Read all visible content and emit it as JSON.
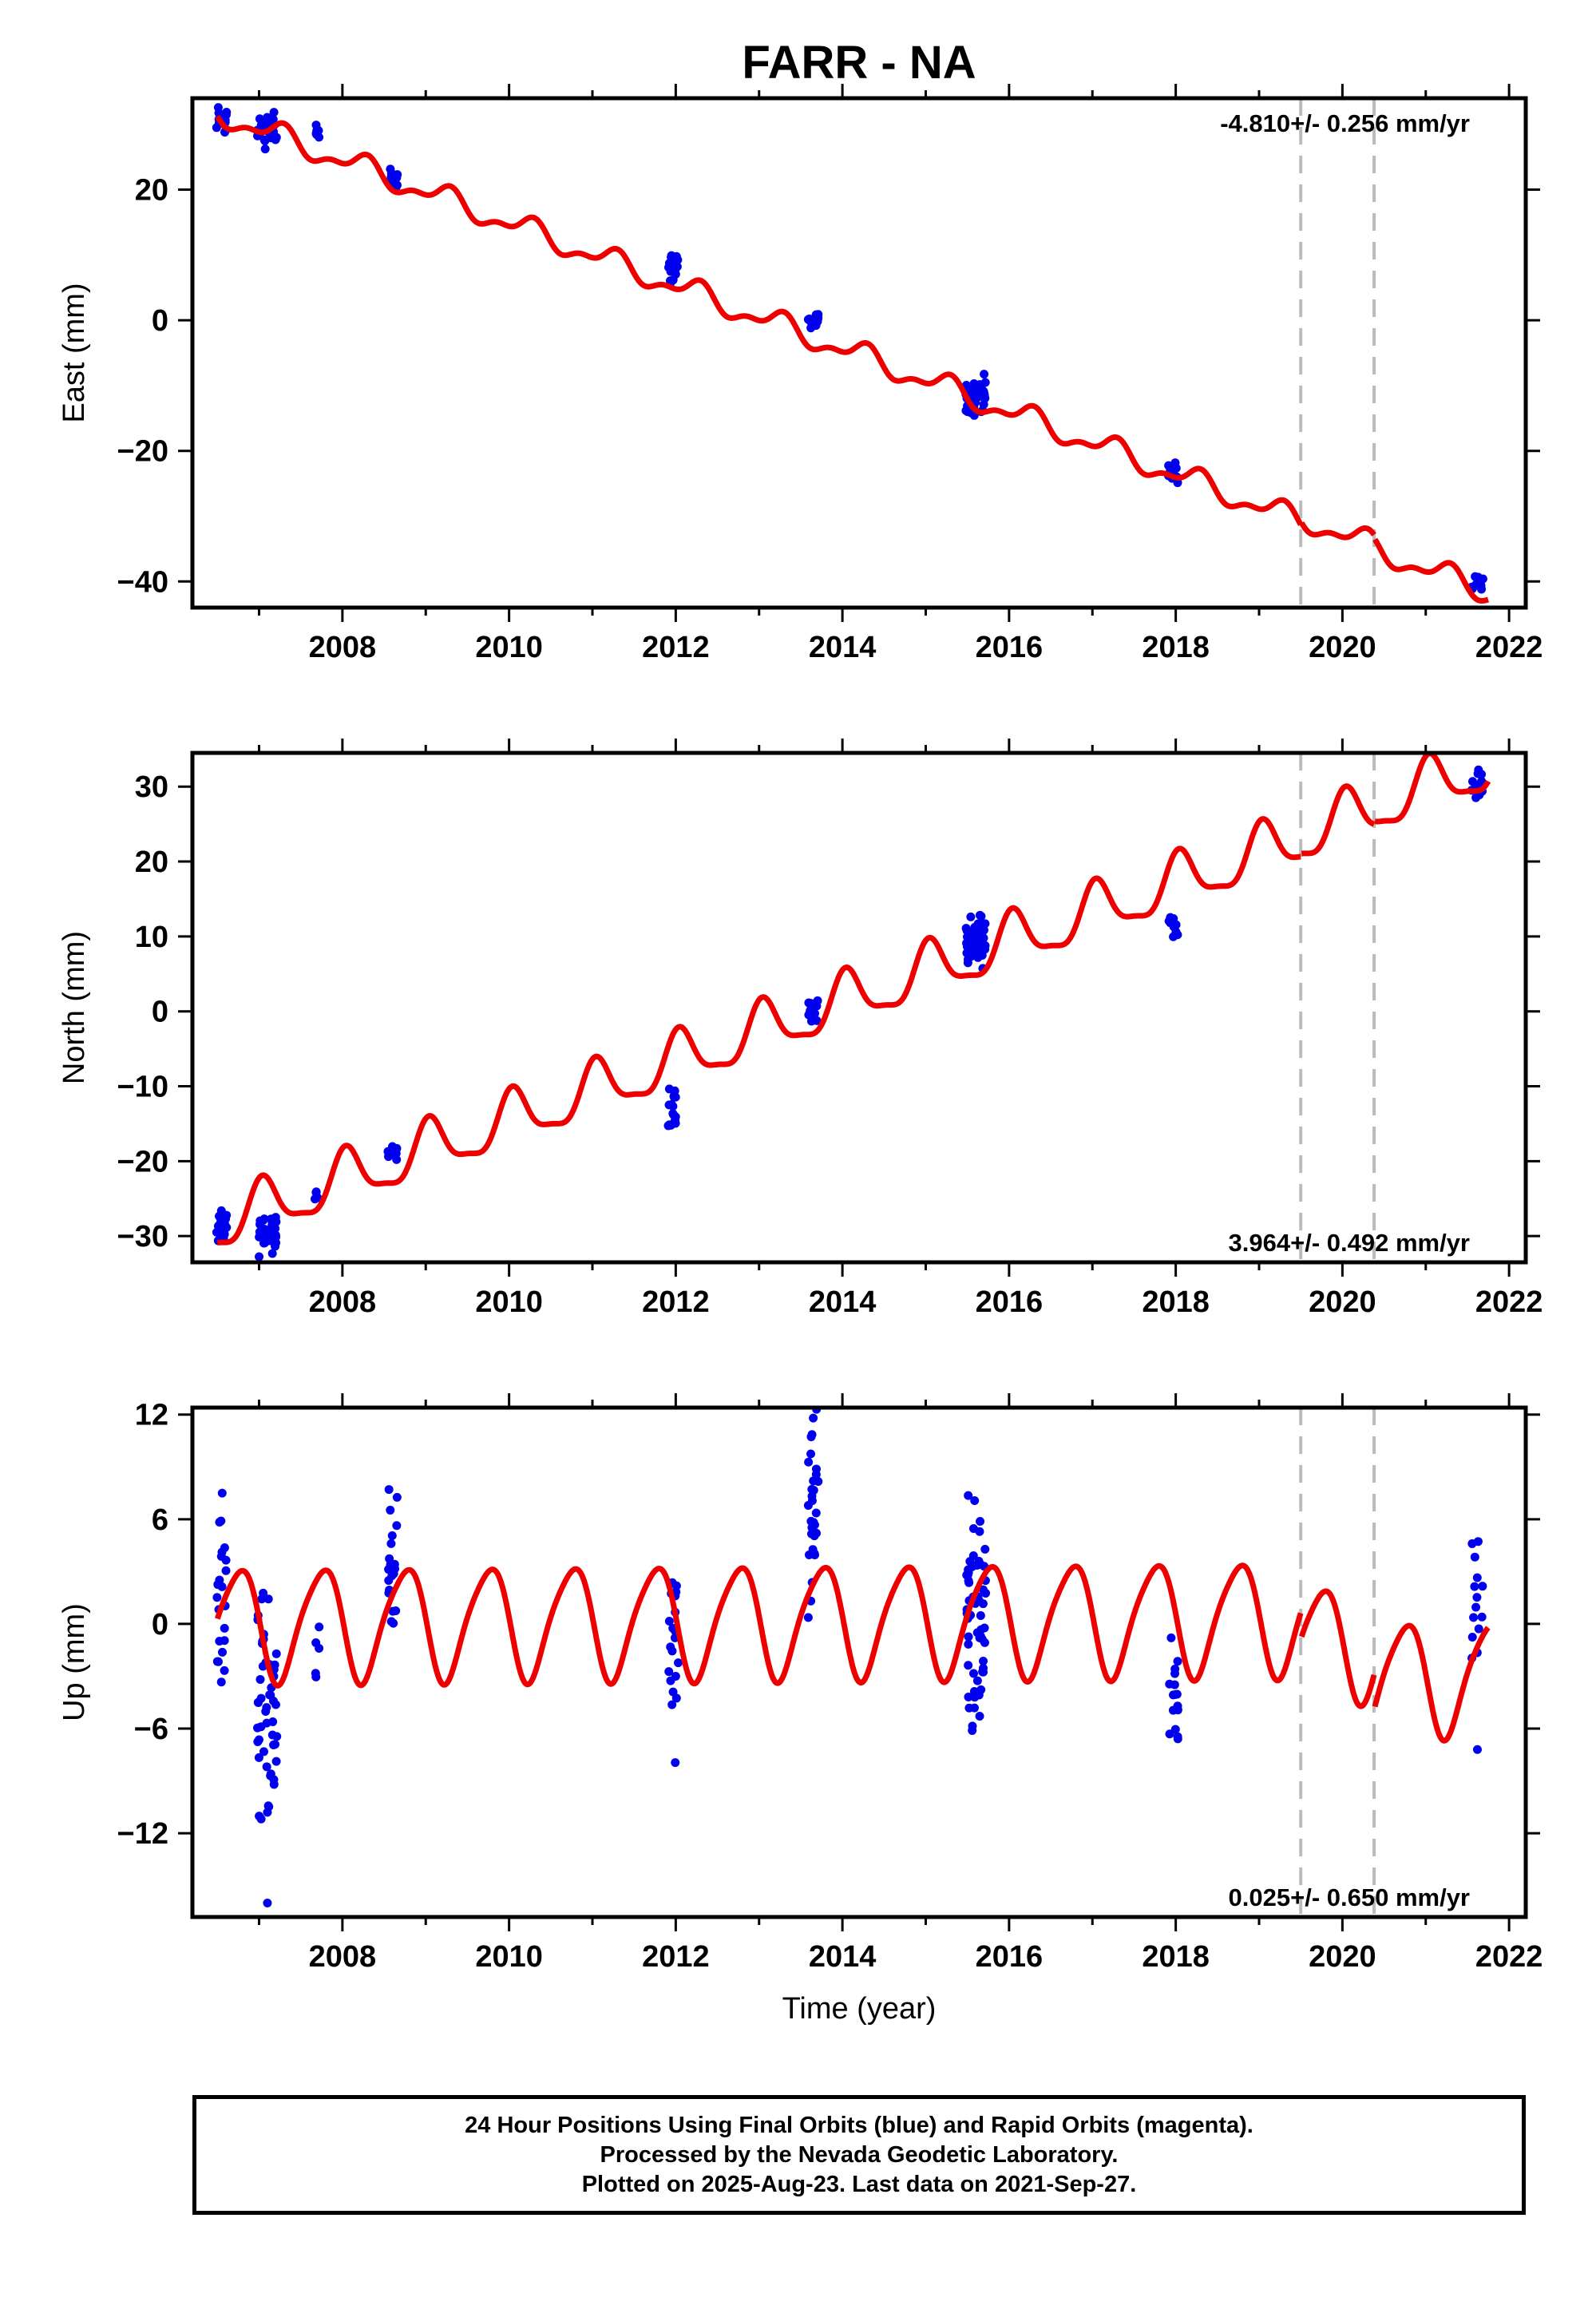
{
  "figure": {
    "title": "FARR - NA",
    "xlabel": "Time (year)"
  },
  "chart_data": [
    {
      "type": "scatter",
      "panel": "east",
      "ylabel": "East (mm)",
      "rate_text": "-4.810+/- 0.256 mm/yr",
      "xlim": [
        2006.2,
        2022.2
      ],
      "ylim": [
        -44,
        34
      ],
      "xticks": [
        2008,
        2010,
        2012,
        2014,
        2016,
        2018,
        2020,
        2022
      ],
      "yticks": [
        -40,
        -20,
        0,
        20
      ],
      "vlines": [
        2019.5,
        2020.38
      ],
      "model": {
        "offset": 31.7,
        "rate": -4.81,
        "annual_amp": 1.6,
        "annual_phase": 0.0,
        "semi_amp": 0.8,
        "semi_phase": 0.3,
        "t0": 2006.5,
        "t_end": 2021.75,
        "steps": [
          {
            "t": 2019.5,
            "dy": 0.5
          },
          {
            "t": 2020.38,
            "dy": -0.5
          }
        ]
      },
      "clusters": [
        {
          "t": 2006.55,
          "dt": 0.06,
          "center": 30.8,
          "spread": 3.0,
          "n": 22
        },
        {
          "t": 2007.1,
          "dt": 0.12,
          "center": 29.0,
          "spread": 3.6,
          "n": 35
        },
        {
          "t": 2007.7,
          "dt": 0.03,
          "center": 28.5,
          "spread": 2.5,
          "n": 6
        },
        {
          "t": 2008.6,
          "dt": 0.06,
          "center": 21.8,
          "spread": 2.0,
          "n": 16
        },
        {
          "t": 2011.97,
          "dt": 0.06,
          "center": 8.0,
          "spread": 3.0,
          "n": 16
        },
        {
          "t": 2013.65,
          "dt": 0.06,
          "center": 0.0,
          "spread": 1.5,
          "n": 14
        },
        {
          "t": 2015.6,
          "dt": 0.12,
          "center": -11.5,
          "spread": 3.5,
          "n": 45
        },
        {
          "t": 2017.97,
          "dt": 0.06,
          "center": -23.2,
          "spread": 2.0,
          "n": 14
        },
        {
          "t": 2021.62,
          "dt": 0.07,
          "center": -40.3,
          "spread": 1.5,
          "n": 12
        }
      ]
    },
    {
      "type": "scatter",
      "panel": "north",
      "ylabel": "North (mm)",
      "rate_text": "3.964+/- 0.492 mm/yr",
      "xlim": [
        2006.2,
        2022.2
      ],
      "ylim": [
        -33.5,
        34.5
      ],
      "xticks": [
        2008,
        2010,
        2012,
        2014,
        2016,
        2018,
        2020,
        2022
      ],
      "yticks": [
        -30,
        -20,
        -10,
        0,
        10,
        20,
        30
      ],
      "vlines": [
        2019.5,
        2020.38
      ],
      "model": {
        "offset": -28.5,
        "rate": 3.964,
        "annual_amp": 3.5,
        "annual_phase": 0.2,
        "semi_amp": 1.0,
        "semi_phase": 0.1,
        "t0": 2006.5,
        "t_end": 2021.75,
        "steps": [
          {
            "t": 2019.5,
            "dy": 0.4
          },
          {
            "t": 2020.38,
            "dy": 0.4
          }
        ]
      },
      "clusters": [
        {
          "t": 2006.55,
          "dt": 0.06,
          "center": -29.0,
          "spread": 2.5,
          "n": 18
        },
        {
          "t": 2007.1,
          "dt": 0.12,
          "center": -30.0,
          "spread": 3.5,
          "n": 35
        },
        {
          "t": 2007.7,
          "dt": 0.03,
          "center": -24.0,
          "spread": 2.0,
          "n": 5
        },
        {
          "t": 2008.6,
          "dt": 0.06,
          "center": -18.5,
          "spread": 2.0,
          "n": 14
        },
        {
          "t": 2011.97,
          "dt": 0.06,
          "center": -12.5,
          "spread": 3.0,
          "n": 16
        },
        {
          "t": 2013.65,
          "dt": 0.06,
          "center": 0.0,
          "spread": 2.0,
          "n": 14
        },
        {
          "t": 2015.6,
          "dt": 0.12,
          "center": 9.5,
          "spread": 4.0,
          "n": 45
        },
        {
          "t": 2017.97,
          "dt": 0.06,
          "center": 11.5,
          "spread": 2.0,
          "n": 14
        },
        {
          "t": 2021.62,
          "dt": 0.07,
          "center": 30.5,
          "spread": 2.5,
          "n": 12
        }
      ]
    },
    {
      "type": "scatter",
      "panel": "up",
      "ylabel": "Up (mm)",
      "rate_text": "0.025+/- 0.650 mm/yr",
      "xlim": [
        2006.2,
        2022.2
      ],
      "ylim": [
        -16.8,
        12.4
      ],
      "xticks": [
        2008,
        2010,
        2012,
        2014,
        2016,
        2018,
        2020,
        2022
      ],
      "yticks": [
        -12,
        -6,
        0,
        6,
        12
      ],
      "vlines": [
        2019.5,
        2020.38
      ],
      "model": {
        "offset": 0.0,
        "rate": 0.025,
        "annual_amp": 3.2,
        "annual_phase": 0.5,
        "semi_amp": 0.5,
        "semi_phase": 0.2,
        "t0": 2006.5,
        "t_end": 2021.75,
        "steps": [
          {
            "t": 2019.5,
            "dy": -1.5
          },
          {
            "t": 2020.38,
            "dy": -2.0
          }
        ]
      },
      "clusters": [
        {
          "t": 2006.55,
          "dt": 0.06,
          "center": 1.0,
          "spread": 8.0,
          "n": 22
        },
        {
          "t": 2007.1,
          "dt": 0.12,
          "center": -4.0,
          "spread": 8.0,
          "n": 50
        },
        {
          "t": 2007.7,
          "dt": 0.03,
          "center": -2.0,
          "spread": 8.0,
          "n": 5
        },
        {
          "t": 2008.6,
          "dt": 0.06,
          "center": 3.0,
          "spread": 6.0,
          "n": 20
        },
        {
          "t": 2011.97,
          "dt": 0.06,
          "center": -2.0,
          "spread": 7.0,
          "n": 20
        },
        {
          "t": 2013.65,
          "dt": 0.06,
          "center": 6.0,
          "spread": 7.0,
          "n": 30
        },
        {
          "t": 2015.6,
          "dt": 0.12,
          "center": 1.0,
          "spread": 8.0,
          "n": 60
        },
        {
          "t": 2017.97,
          "dt": 0.06,
          "center": -4.0,
          "spread": 4.0,
          "n": 16
        },
        {
          "t": 2021.62,
          "dt": 0.07,
          "center": 1.0,
          "spread": 5.0,
          "n": 14
        }
      ],
      "outliers": [
        {
          "t": 2007.1,
          "y": -16.0
        },
        {
          "t": 2007.1,
          "y": -10.8
        },
        {
          "t": 2013.65,
          "y": 11.8
        },
        {
          "t": 2021.62,
          "y": -7.2
        }
      ]
    }
  ],
  "caption": {
    "line1": "24 Hour Positions Using Final Orbits (blue) and Rapid Orbits (magenta).",
    "line2": "Processed by the Nevada Geodetic Laboratory.",
    "line3": "Plotted on 2025-Aug-23. Last data on 2021-Sep-27."
  },
  "colors": {
    "data_points": "#0000ee",
    "model_line": "#ee0000",
    "vline": "#bbbbbb",
    "frame": "#000000"
  }
}
